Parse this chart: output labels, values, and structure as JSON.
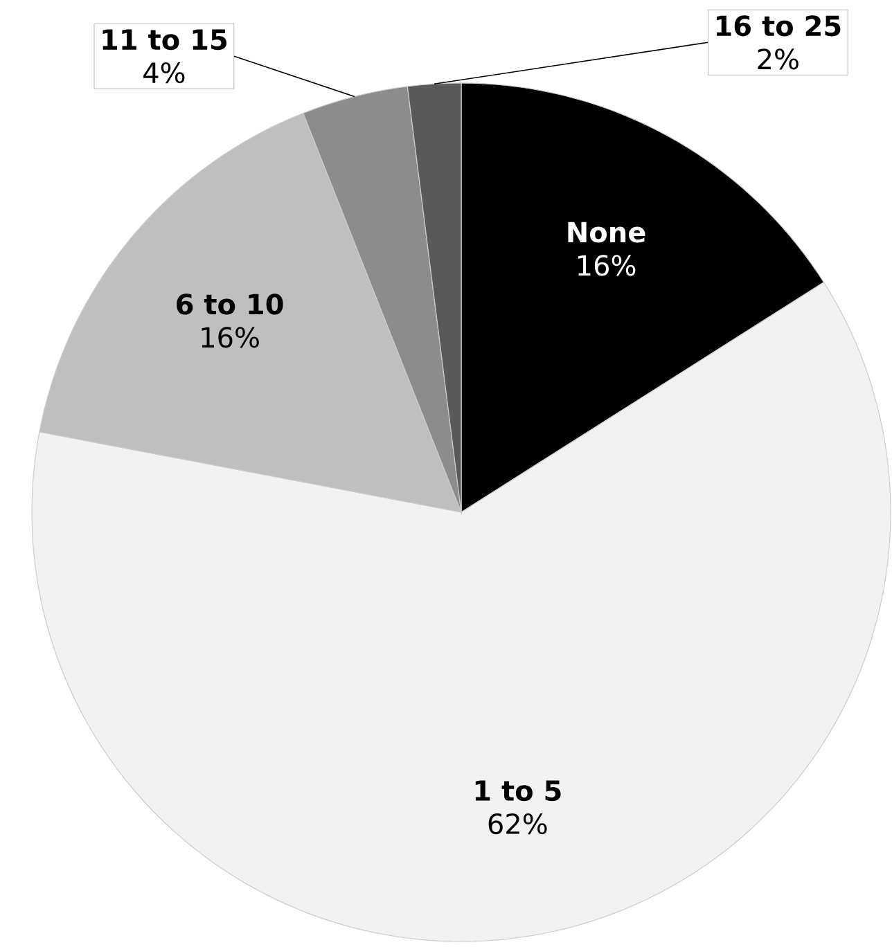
{
  "chart_data": {
    "type": "pie",
    "categories": [
      "None",
      "1 to 5",
      "6 to 10",
      "11 to 15",
      "16 to 25"
    ],
    "values": [
      16,
      62,
      16,
      4,
      2
    ],
    "colors": [
      "#000000",
      "#f2f2f2",
      "#bfbfbf",
      "#8c8c8c",
      "#595959"
    ],
    "value_labels": [
      "16%",
      "62%",
      "16%",
      "4%",
      "2%"
    ]
  }
}
